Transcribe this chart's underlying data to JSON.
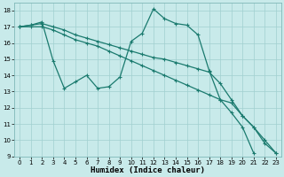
{
  "title": "",
  "xlabel": "Humidex (Indice chaleur)",
  "xlim": [
    -0.5,
    23.5
  ],
  "ylim": [
    9,
    18.5
  ],
  "yticks": [
    9,
    10,
    11,
    12,
    13,
    14,
    15,
    16,
    17,
    18
  ],
  "xticks": [
    0,
    1,
    2,
    3,
    4,
    5,
    6,
    7,
    8,
    9,
    10,
    11,
    12,
    13,
    14,
    15,
    16,
    17,
    18,
    19,
    20,
    21,
    22,
    23
  ],
  "bg_color": "#c8eaea",
  "line_color": "#1a7a6e",
  "grid_color": "#a0d0d0",
  "series1_x": [
    0,
    1,
    2,
    3,
    4,
    5,
    6,
    7,
    8,
    9,
    10,
    11,
    12,
    13,
    14,
    15,
    16,
    17,
    18,
    19,
    20,
    21,
    22,
    23
  ],
  "series1_y": [
    17.0,
    17.1,
    17.2,
    17.0,
    16.8,
    16.5,
    16.3,
    16.1,
    15.9,
    15.7,
    15.5,
    15.3,
    15.1,
    15.0,
    14.8,
    14.6,
    14.4,
    14.2,
    13.5,
    12.5,
    11.5,
    10.8,
    10.0,
    9.2
  ],
  "series2_x": [
    0,
    1,
    2,
    3,
    4,
    5,
    6,
    7,
    8,
    9,
    10,
    11,
    12,
    13,
    14,
    15,
    16,
    17,
    18,
    19,
    20,
    21,
    22,
    23
  ],
  "series2_y": [
    17.0,
    17.1,
    17.3,
    14.9,
    13.2,
    13.6,
    14.0,
    13.2,
    13.3,
    13.9,
    16.1,
    16.6,
    18.1,
    17.5,
    17.2,
    17.1,
    16.5,
    14.3,
    12.5,
    11.7,
    10.8,
    9.2,
    null,
    null
  ],
  "series3_x": [
    0,
    1,
    2,
    3,
    4,
    5,
    6,
    7,
    8,
    9,
    10,
    11,
    12,
    13,
    14,
    15,
    16,
    17,
    18,
    19,
    20,
    21,
    22,
    23
  ],
  "series3_y": [
    17.0,
    17.0,
    17.0,
    16.8,
    16.5,
    16.2,
    16.0,
    15.8,
    15.5,
    15.2,
    14.9,
    14.6,
    14.3,
    14.0,
    13.7,
    13.4,
    13.1,
    12.8,
    12.5,
    12.3,
    11.5,
    10.8,
    9.8,
    9.2
  ]
}
